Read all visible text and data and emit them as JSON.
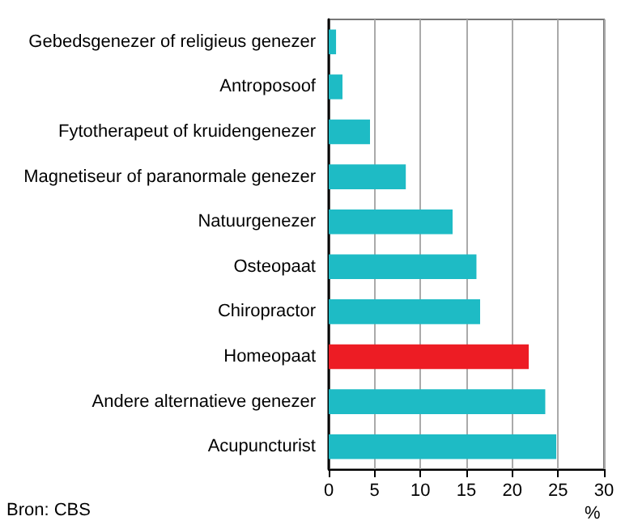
{
  "chart_data": {
    "type": "bar",
    "orientation": "horizontal",
    "xlabel": "%",
    "annotations": [
      "Bron: CBS"
    ],
    "categories": [
      "Gebedsgenezer of religieus genezer",
      "Antroposoof",
      "Fytotherapeut of kruidengenezer",
      "Magnetiseur of paranormale genezer",
      "Natuurgenezer",
      "Osteopaat",
      "Chiropractor",
      "Homeopaat",
      "Andere alternatieve genezer",
      "Acupuncturist"
    ],
    "values": [
      0.8,
      1.5,
      4.5,
      8.4,
      13.5,
      16.1,
      16.5,
      21.8,
      23.6,
      24.8
    ],
    "colors": [
      "#1ebbc5",
      "#1ebbc5",
      "#1ebbc5",
      "#1ebbc5",
      "#1ebbc5",
      "#1ebbc5",
      "#1ebbc5",
      "#ed1c24",
      "#1ebbc5",
      "#1ebbc5"
    ],
    "xlim": [
      0,
      30
    ],
    "xticks": [
      0,
      5,
      10,
      15,
      20,
      25,
      30
    ],
    "grid": "x"
  }
}
